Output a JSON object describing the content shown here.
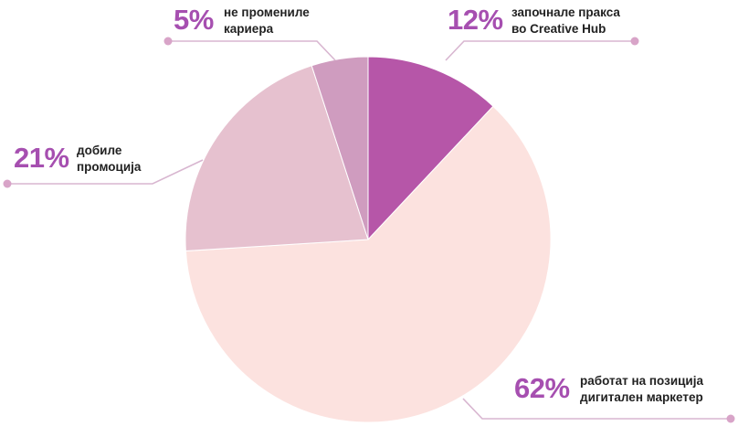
{
  "chart_data": {
    "type": "pie",
    "title": "",
    "start_angle_deg": 0,
    "direction": "clockwise",
    "slices": [
      {
        "value": 12,
        "percent_label": "12%",
        "label_lines": [
          "започнале пракса",
          "во Creative Hub"
        ],
        "color": "#b656a8",
        "accent": "#cc91c3",
        "label_position": "top-right"
      },
      {
        "value": 62,
        "percent_label": "62%",
        "label_lines": [
          "работат на позиција",
          "дигитален маркетер"
        ],
        "color": "#fce2df",
        "accent": "#d8b0ca",
        "label_position": "bottom-right"
      },
      {
        "value": 21,
        "percent_label": "21%",
        "label_lines": [
          "добиле",
          "промоција"
        ],
        "color": "#e6c1cf",
        "accent": "#d8a4c8",
        "label_position": "left"
      },
      {
        "value": 5,
        "percent_label": "5%",
        "label_lines": [
          "не  промениле",
          "кариера"
        ],
        "color": "#cf9cbf",
        "accent": "#d8a4c8",
        "label_position": "top"
      }
    ]
  },
  "colors": {
    "percent_text": "#a64fb0",
    "label_text": "#222222",
    "leader_line": "#d8b6d0",
    "slice_border": "#ffffff"
  }
}
